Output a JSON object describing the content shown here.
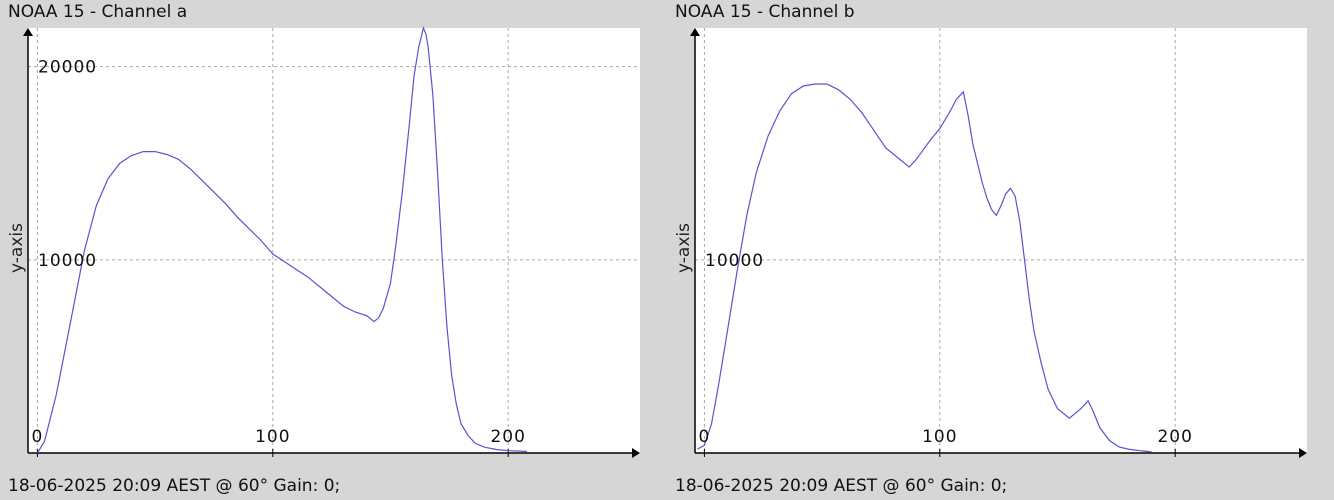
{
  "chart_data": [
    {
      "type": "line",
      "title": "NOAA 15 - Channel a",
      "ylabel": "y-axis",
      "footer": "18-06-2025 20:09 AEST @ 60° Gain: 0;",
      "xlim": [
        -4,
        256
      ],
      "ylim": [
        0,
        22000
      ],
      "xticks": [
        0,
        100,
        200
      ],
      "yticks": [
        10000,
        20000
      ],
      "grid": true,
      "series": [
        {
          "color": "#5656d0",
          "x": [
            0,
            3,
            8,
            12,
            16,
            20,
            25,
            30,
            35,
            40,
            45,
            50,
            55,
            60,
            65,
            70,
            75,
            80,
            85,
            90,
            95,
            100,
            105,
            110,
            115,
            120,
            125,
            130,
            135,
            140,
            143,
            145,
            147,
            150,
            152,
            155,
            158,
            160,
            162,
            163,
            164,
            165,
            166,
            168,
            170,
            172,
            174,
            176,
            178,
            180,
            183,
            186,
            190,
            195,
            200,
            205,
            208
          ],
          "y": [
            0,
            600,
            3000,
            5500,
            8000,
            10500,
            12800,
            14200,
            15000,
            15400,
            15600,
            15600,
            15450,
            15200,
            14700,
            14100,
            13500,
            12900,
            12200,
            11600,
            11000,
            10300,
            9900,
            9500,
            9100,
            8600,
            8100,
            7600,
            7300,
            7100,
            6800,
            7000,
            7500,
            8800,
            10500,
            13500,
            17000,
            19500,
            21000,
            21500,
            22000,
            21700,
            21000,
            18500,
            14500,
            10000,
            6500,
            4000,
            2500,
            1500,
            900,
            500,
            300,
            180,
            120,
            100,
            80
          ]
        }
      ]
    },
    {
      "type": "line",
      "title": "NOAA 15 - Channel b",
      "ylabel": "y-axis",
      "footer": "18-06-2025 20:09 AEST @ 60° Gain: 0;",
      "xlim": [
        -4,
        256
      ],
      "ylim": [
        0,
        22000
      ],
      "xticks": [
        0,
        100,
        200
      ],
      "yticks": [
        10000
      ],
      "grid": true,
      "series": [
        {
          "color": "#5656d0",
          "x": [
            -3,
            0,
            3,
            6,
            10,
            14,
            18,
            22,
            27,
            32,
            37,
            42,
            47,
            52,
            57,
            62,
            67,
            72,
            77,
            82,
            87,
            90,
            93,
            96,
            100,
            104,
            107,
            110,
            112,
            114,
            116,
            118,
            120,
            122,
            124,
            126,
            128,
            130,
            132,
            134,
            136,
            138,
            140,
            143,
            146,
            150,
            155,
            160,
            163,
            165,
            168,
            172,
            176,
            180,
            185,
            190
          ],
          "y": [
            200,
            400,
            1500,
            3500,
            6500,
            9500,
            12300,
            14500,
            16400,
            17700,
            18600,
            19000,
            19100,
            19100,
            18800,
            18300,
            17600,
            16700,
            15800,
            15300,
            14800,
            15200,
            15700,
            16200,
            16800,
            17600,
            18300,
            18700,
            17500,
            16000,
            15000,
            14000,
            13200,
            12600,
            12300,
            12800,
            13400,
            13700,
            13300,
            12000,
            10000,
            8000,
            6300,
            4700,
            3300,
            2300,
            1800,
            2300,
            2700,
            2200,
            1300,
            650,
            320,
            200,
            120,
            60
          ]
        }
      ]
    }
  ]
}
